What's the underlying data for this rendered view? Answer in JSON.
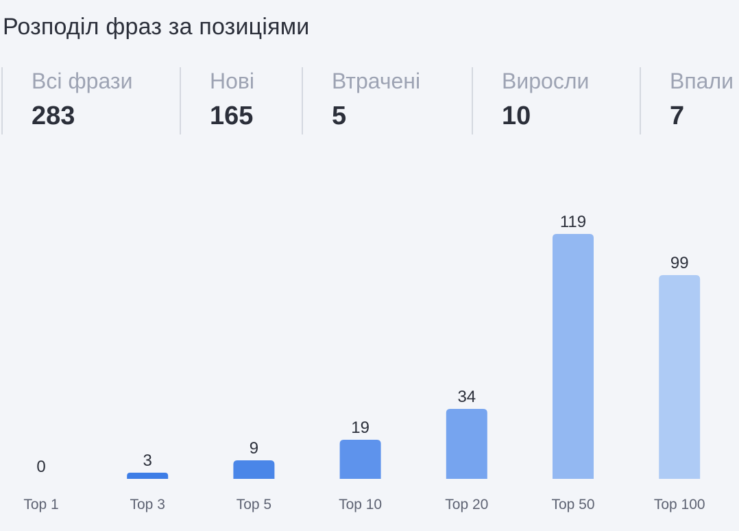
{
  "title": "Розподіл фраз за позиціями",
  "stats": [
    {
      "label": "Всі фрази",
      "value": "283"
    },
    {
      "label": "Нові",
      "value": "165"
    },
    {
      "label": "Втрачені",
      "value": "5"
    },
    {
      "label": "Виросли",
      "value": "10"
    },
    {
      "label": "Впали",
      "value": "7"
    }
  ],
  "colors": {
    "background": "#f3f5f9",
    "bars": [
      "#3d7de6",
      "#3d7de6",
      "#4a86e8",
      "#5e93ec",
      "#76a4ef",
      "#93b8f2",
      "#aecbf5"
    ]
  },
  "chart_data": {
    "type": "bar",
    "categories": [
      "Top 1",
      "Top 3",
      "Top 5",
      "Top 10",
      "Top 20",
      "Top 50",
      "Top 100"
    ],
    "values": [
      0,
      3,
      9,
      19,
      34,
      119,
      99
    ],
    "ylim": [
      0,
      119
    ],
    "data_labels": true,
    "grid": false,
    "legend": "none"
  }
}
